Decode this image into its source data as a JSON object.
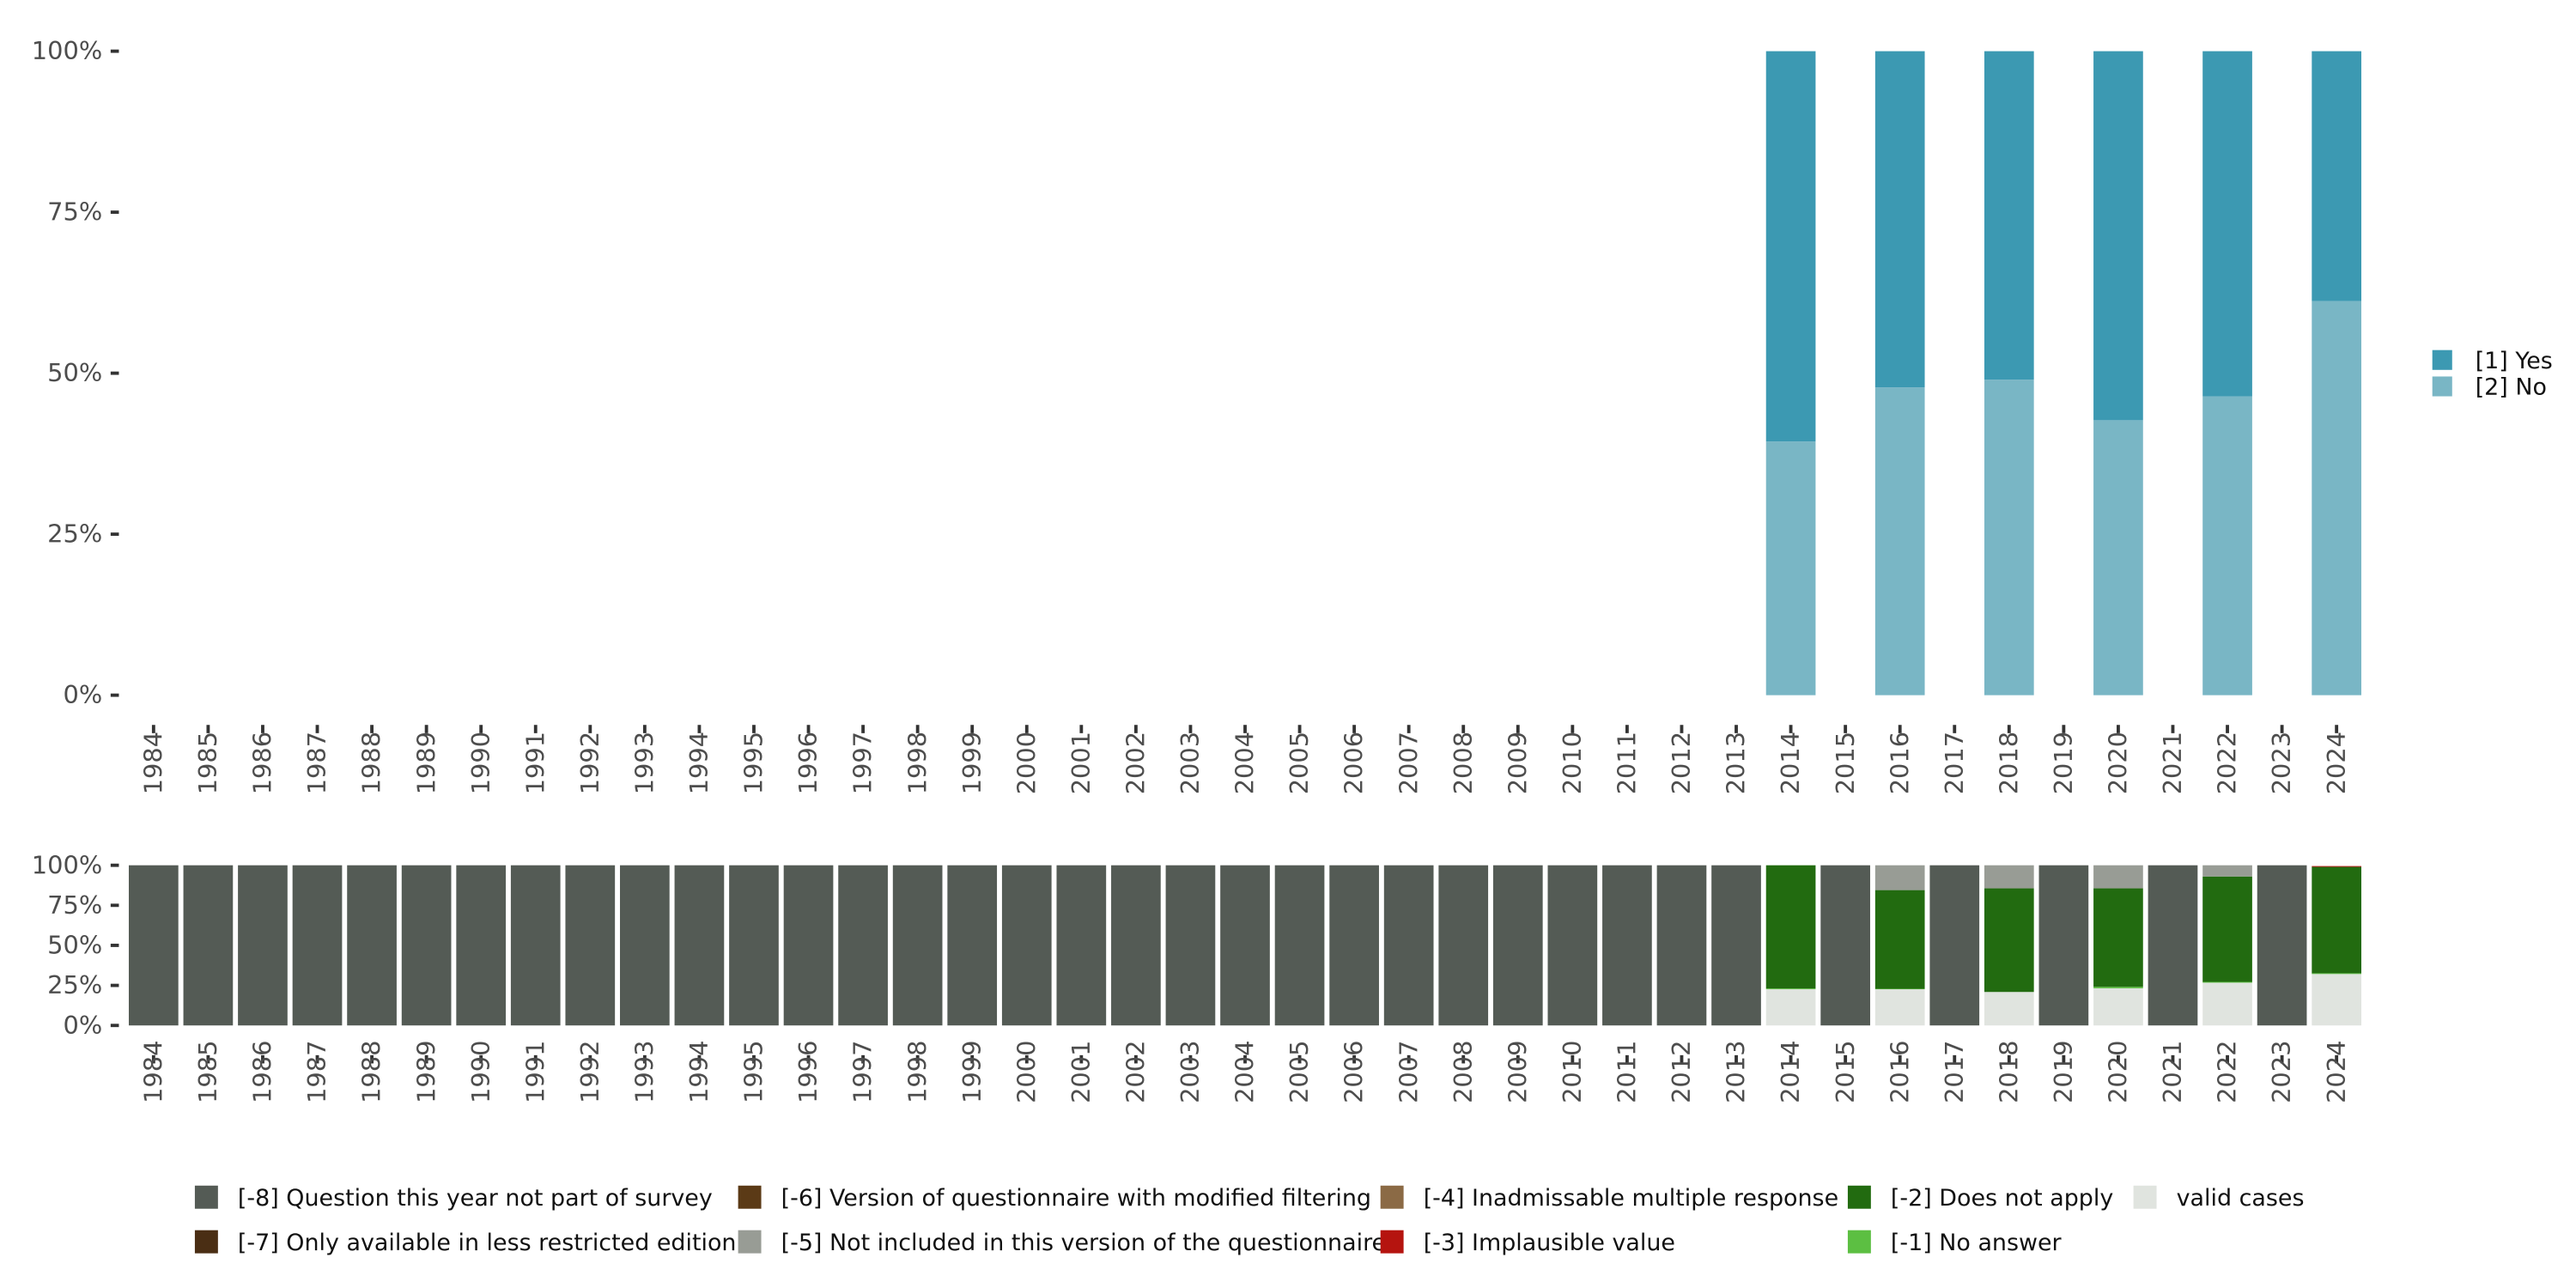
{
  "chart_data": [
    {
      "type": "bar",
      "stacked": true,
      "title": "",
      "xlabel": "",
      "ylabel": "",
      "ylim": [
        0,
        1
      ],
      "yticks": [
        "0%",
        "25%",
        "50%",
        "75%",
        "100%"
      ],
      "categories": [
        "1984",
        "1985",
        "1986",
        "1987",
        "1988",
        "1989",
        "1990",
        "1991",
        "1992",
        "1993",
        "1994",
        "1995",
        "1996",
        "1997",
        "1998",
        "1999",
        "2000",
        "2001",
        "2002",
        "2003",
        "2004",
        "2005",
        "2006",
        "2007",
        "2008",
        "2009",
        "2010",
        "2011",
        "2012",
        "2013",
        "2014",
        "2015",
        "2016",
        "2017",
        "2018",
        "2019",
        "2020",
        "2021",
        "2022",
        "2023",
        "2024"
      ],
      "legend_position": "right",
      "series": [
        {
          "name": "[2] No",
          "color": "#79b6c5",
          "values": {
            "2014": 0.394,
            "2016": 0.478,
            "2018": 0.49,
            "2020": 0.427,
            "2022": 0.464,
            "2024": 0.612
          }
        },
        {
          "name": "[1] Yes",
          "color": "#3c99b2",
          "values": {
            "2014": 0.606,
            "2016": 0.522,
            "2018": 0.51,
            "2020": 0.573,
            "2022": 0.536,
            "2024": 0.388
          }
        }
      ],
      "legend_order": [
        "[1] Yes",
        "[2] No"
      ]
    },
    {
      "type": "bar",
      "stacked": true,
      "title": "",
      "xlabel": "",
      "ylabel": "",
      "ylim": [
        0,
        1
      ],
      "yticks": [
        "0%",
        "25%",
        "50%",
        "75%",
        "100%"
      ],
      "categories": [
        "1984",
        "1985",
        "1986",
        "1987",
        "1988",
        "1989",
        "1990",
        "1991",
        "1992",
        "1993",
        "1994",
        "1995",
        "1996",
        "1997",
        "1998",
        "1999",
        "2000",
        "2001",
        "2002",
        "2003",
        "2004",
        "2005",
        "2006",
        "2007",
        "2008",
        "2009",
        "2010",
        "2011",
        "2012",
        "2013",
        "2014",
        "2015",
        "2016",
        "2017",
        "2018",
        "2019",
        "2020",
        "2021",
        "2022",
        "2023",
        "2024"
      ],
      "legend_position": "bottom",
      "series": [
        {
          "name": "valid cases",
          "color": "#e0e4df",
          "values": {
            "2014": 0.226,
            "2016": 0.226,
            "2018": 0.209,
            "2020": 0.232,
            "2022": 0.267,
            "2024": 0.321
          }
        },
        {
          "name": "[-1] No answer",
          "color": "#5cbf42",
          "values": {
            "2014": 0.005,
            "2016": 0.003,
            "2018": 0.0,
            "2020": 0.009,
            "2022": 0.005,
            "2024": 0.005
          }
        },
        {
          "name": "[-2] Does not apply",
          "color": "#226b10",
          "values": {
            "2014": 0.769,
            "2016": 0.616,
            "2018": 0.647,
            "2020": 0.615,
            "2022": 0.658,
            "2024": 0.664
          }
        },
        {
          "name": "[-3] Implausible value",
          "color": "#b5140f",
          "values": {
            "2024": 0.005
          }
        },
        {
          "name": "[-4] Inadmissable multiple response",
          "color": "#8b6a45",
          "values": {}
        },
        {
          "name": "[-5] Not included in this version of the questionnaire",
          "color": "#989c95",
          "values": {
            "2016": 0.155,
            "2018": 0.144,
            "2020": 0.144,
            "2022": 0.07
          }
        },
        {
          "name": "[-6] Version of questionnaire with modified filtering",
          "color": "#5b3a16",
          "values": {}
        },
        {
          "name": "[-7] Only available in less restricted edition",
          "color": "#4a2e14",
          "values": {}
        },
        {
          "name": "[-8] Question this year not part of survey",
          "color": "#545b55",
          "values": {
            "1984": 1,
            "1985": 1,
            "1986": 1,
            "1987": 1,
            "1988": 1,
            "1989": 1,
            "1990": 1,
            "1991": 1,
            "1992": 1,
            "1993": 1,
            "1994": 1,
            "1995": 1,
            "1996": 1,
            "1997": 1,
            "1998": 1,
            "1999": 1,
            "2000": 1,
            "2001": 1,
            "2002": 1,
            "2003": 1,
            "2004": 1,
            "2005": 1,
            "2006": 1,
            "2007": 1,
            "2008": 1,
            "2009": 1,
            "2010": 1,
            "2011": 1,
            "2012": 1,
            "2013": 1,
            "2015": 1,
            "2017": 1,
            "2019": 1,
            "2021": 1,
            "2023": 1
          }
        }
      ],
      "legend_order": [
        "[-8] Question this year not part of survey",
        "[-7] Only available in less restricted edition",
        "[-6] Version of questionnaire with modified filtering",
        "[-5] Not included in this version of the questionnaire",
        "[-4] Inadmissable multiple response",
        "[-3] Implausible value",
        "[-2] Does not apply",
        "[-1] No answer",
        "valid cases"
      ]
    }
  ]
}
